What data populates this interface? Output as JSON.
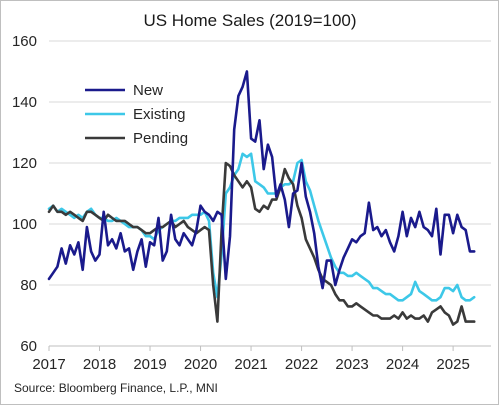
{
  "chart_data": {
    "type": "line",
    "title": "US Home Sales (2019=100)",
    "source": "Source: Bloomberg Finance, L.P., MNI",
    "xlabel": "",
    "ylabel": "",
    "xlim": [
      2017.0,
      2025.75
    ],
    "ylim": [
      60,
      160
    ],
    "y_ticks": [
      60,
      80,
      100,
      120,
      140,
      160
    ],
    "x_ticks": [
      {
        "value": 2017,
        "label": "2017"
      },
      {
        "value": 2018,
        "label": "2018"
      },
      {
        "value": 2019,
        "label": "2019"
      },
      {
        "value": 2020,
        "label": "2020"
      },
      {
        "value": 2021,
        "label": "2021"
      },
      {
        "value": 2022,
        "label": "2022"
      },
      {
        "value": 2023,
        "label": "2023"
      },
      {
        "value": 2024,
        "label": "2024"
      },
      {
        "value": 2025,
        "label": "2025"
      }
    ],
    "grid": "horizontal",
    "legend_position": "top-left",
    "series": [
      {
        "name": "New",
        "color": "#1a1a8c",
        "x": [
          2017.0,
          2017.083,
          2017.167,
          2017.25,
          2017.333,
          2017.417,
          2017.5,
          2017.583,
          2017.667,
          2017.75,
          2017.833,
          2017.917,
          2018.0,
          2018.083,
          2018.167,
          2018.25,
          2018.333,
          2018.417,
          2018.5,
          2018.583,
          2018.667,
          2018.75,
          2018.833,
          2018.917,
          2019.0,
          2019.083,
          2019.167,
          2019.25,
          2019.333,
          2019.417,
          2019.5,
          2019.583,
          2019.667,
          2019.75,
          2019.833,
          2019.917,
          2020.0,
          2020.083,
          2020.167,
          2020.25,
          2020.333,
          2020.417,
          2020.5,
          2020.583,
          2020.667,
          2020.75,
          2020.833,
          2020.917,
          2021.0,
          2021.083,
          2021.167,
          2021.25,
          2021.333,
          2021.417,
          2021.5,
          2021.583,
          2021.667,
          2021.75,
          2021.833,
          2021.917,
          2022.0,
          2022.083,
          2022.167,
          2022.25,
          2022.333,
          2022.417,
          2022.5,
          2022.583,
          2022.667,
          2022.75,
          2022.833,
          2022.917,
          2023.0,
          2023.083,
          2023.167,
          2023.25,
          2023.333,
          2023.417,
          2023.5,
          2023.583,
          2023.667,
          2023.75,
          2023.833,
          2023.917,
          2024.0,
          2024.083,
          2024.167,
          2024.25,
          2024.333,
          2024.417,
          2024.5,
          2024.583,
          2024.667,
          2024.75,
          2024.833,
          2024.917,
          2025.0,
          2025.083,
          2025.167,
          2025.25,
          2025.333,
          2025.417
        ],
        "y": [
          82,
          84,
          86,
          92,
          87,
          93,
          90,
          94,
          85,
          99,
          91,
          88,
          90,
          104,
          93,
          95,
          92,
          97,
          91,
          92,
          85,
          91,
          95,
          86,
          94,
          93,
          102,
          88,
          91,
          103,
          95,
          93,
          97,
          95,
          93,
          98,
          106,
          104,
          103,
          101,
          104,
          103,
          82,
          96,
          131,
          142,
          145,
          150,
          128,
          127,
          134,
          118,
          126,
          122,
          109,
          113,
          108,
          99,
          110,
          111,
          120,
          109,
          104,
          97,
          86,
          79,
          88,
          88,
          80,
          85,
          89,
          92,
          95,
          94,
          96,
          97,
          107,
          98,
          99,
          96,
          98,
          94,
          91,
          96,
          104,
          96,
          102,
          99,
          104,
          99,
          98,
          96,
          105,
          90,
          103,
          103,
          97,
          103,
          99,
          98,
          91,
          91
        ]
      },
      {
        "name": "Existing",
        "color": "#3dc8e8",
        "x": [
          2017.0,
          2017.083,
          2017.167,
          2017.25,
          2017.333,
          2017.417,
          2017.5,
          2017.583,
          2017.667,
          2017.75,
          2017.833,
          2017.917,
          2018.0,
          2018.083,
          2018.167,
          2018.25,
          2018.333,
          2018.417,
          2018.5,
          2018.583,
          2018.667,
          2018.75,
          2018.833,
          2018.917,
          2019.0,
          2019.083,
          2019.167,
          2019.25,
          2019.333,
          2019.417,
          2019.5,
          2019.583,
          2019.667,
          2019.75,
          2019.833,
          2019.917,
          2020.0,
          2020.083,
          2020.167,
          2020.25,
          2020.333,
          2020.417,
          2020.5,
          2020.583,
          2020.667,
          2020.75,
          2020.833,
          2020.917,
          2021.0,
          2021.083,
          2021.167,
          2021.25,
          2021.333,
          2021.417,
          2021.5,
          2021.583,
          2021.667,
          2021.75,
          2021.833,
          2021.917,
          2022.0,
          2022.083,
          2022.167,
          2022.25,
          2022.333,
          2022.417,
          2022.5,
          2022.583,
          2022.667,
          2022.75,
          2022.833,
          2022.917,
          2023.0,
          2023.083,
          2023.167,
          2023.25,
          2023.333,
          2023.417,
          2023.5,
          2023.583,
          2023.667,
          2023.75,
          2023.833,
          2023.917,
          2024.0,
          2024.083,
          2024.167,
          2024.25,
          2024.333,
          2024.417,
          2024.5,
          2024.583,
          2024.667,
          2024.75,
          2024.833,
          2024.917,
          2025.0,
          2025.083,
          2025.167,
          2025.25,
          2025.333,
          2025.417
        ],
        "y": [
          105,
          106,
          104,
          105,
          104,
          103,
          102,
          103,
          102,
          104,
          105,
          103,
          102,
          102,
          101,
          101,
          102,
          101,
          100,
          99,
          99,
          99,
          98,
          96,
          96,
          95,
          98,
          99,
          100,
          101,
          101,
          102,
          102,
          102,
          103,
          103,
          103,
          104,
          101,
          84,
          76,
          90,
          110,
          112,
          116,
          118,
          123,
          122,
          123,
          114,
          113,
          112,
          110,
          110,
          110,
          112,
          113,
          113,
          114,
          120,
          121,
          114,
          111,
          106,
          101,
          97,
          93,
          89,
          86,
          84,
          84,
          83,
          83,
          84,
          83,
          82,
          81,
          79,
          79,
          78,
          77,
          77,
          76,
          75,
          75,
          76,
          77,
          81,
          78,
          77,
          76,
          75,
          75,
          76,
          79,
          79,
          78,
          80,
          76,
          75,
          75,
          76
        ]
      },
      {
        "name": "Pending",
        "color": "#3a3a3a",
        "x": [
          2017.0,
          2017.083,
          2017.167,
          2017.25,
          2017.333,
          2017.417,
          2017.5,
          2017.583,
          2017.667,
          2017.75,
          2017.833,
          2017.917,
          2018.0,
          2018.083,
          2018.167,
          2018.25,
          2018.333,
          2018.417,
          2018.5,
          2018.583,
          2018.667,
          2018.75,
          2018.833,
          2018.917,
          2019.0,
          2019.083,
          2019.167,
          2019.25,
          2019.333,
          2019.417,
          2019.5,
          2019.583,
          2019.667,
          2019.75,
          2019.833,
          2019.917,
          2020.0,
          2020.083,
          2020.167,
          2020.25,
          2020.333,
          2020.417,
          2020.5,
          2020.583,
          2020.667,
          2020.75,
          2020.833,
          2020.917,
          2021.0,
          2021.083,
          2021.167,
          2021.25,
          2021.333,
          2021.417,
          2021.5,
          2021.583,
          2021.667,
          2021.75,
          2021.833,
          2021.917,
          2022.0,
          2022.083,
          2022.167,
          2022.25,
          2022.333,
          2022.417,
          2022.5,
          2022.583,
          2022.667,
          2022.75,
          2022.833,
          2022.917,
          2023.0,
          2023.083,
          2023.167,
          2023.25,
          2023.333,
          2023.417,
          2023.5,
          2023.583,
          2023.667,
          2023.75,
          2023.833,
          2023.917,
          2024.0,
          2024.083,
          2024.167,
          2024.25,
          2024.333,
          2024.417,
          2024.5,
          2024.583,
          2024.667,
          2024.75,
          2024.833,
          2024.917,
          2025.0,
          2025.083,
          2025.167,
          2025.25,
          2025.333,
          2025.417
        ],
        "y": [
          104,
          106,
          104,
          104,
          103,
          104,
          103,
          102,
          101,
          104,
          104,
          103,
          102,
          101,
          103,
          102,
          101,
          101,
          101,
          100,
          99,
          99,
          98,
          97,
          97,
          98,
          99,
          99,
          100,
          101,
          99,
          100,
          101,
          99,
          98,
          97,
          98,
          99,
          98,
          80,
          68,
          98,
          120,
          119,
          116,
          114,
          112,
          114,
          112,
          105,
          104,
          106,
          105,
          108,
          108,
          112,
          118,
          115,
          113,
          106,
          102,
          95,
          92,
          89,
          85,
          82,
          81,
          80,
          77,
          75,
          75,
          73,
          73,
          74,
          73,
          72,
          71,
          70,
          70,
          69,
          69,
          69,
          70,
          69,
          71,
          69,
          70,
          69,
          69,
          70,
          68,
          71,
          72,
          73,
          71,
          70,
          67,
          68,
          73,
          68,
          68,
          68
        ]
      }
    ]
  }
}
